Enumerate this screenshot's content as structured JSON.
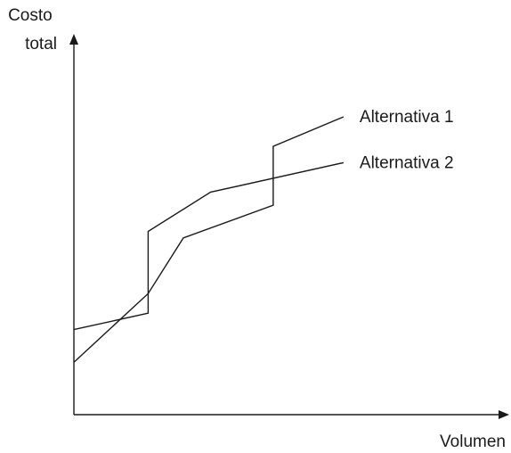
{
  "chart_data": {
    "type": "line",
    "title": "",
    "xlabel": "Volumen",
    "ylabel": [
      "Costo",
      "total"
    ],
    "axis_ticks": "none",
    "grid": false,
    "legend": "direct labels at right end of each line",
    "xlim": [
      0,
      100
    ],
    "ylim": [
      0,
      100
    ],
    "series": [
      {
        "name": "Alternativa 1",
        "points": [
          [
            0,
            16
          ],
          [
            19,
            37
          ],
          [
            28,
            54
          ],
          [
            51,
            64
          ],
          [
            51,
            82
          ],
          [
            69,
            91
          ]
        ]
      },
      {
        "name": "Alternativa 2",
        "points": [
          [
            0,
            26
          ],
          [
            19,
            31
          ],
          [
            19,
            56
          ],
          [
            35,
            68
          ],
          [
            69,
            77
          ]
        ]
      }
    ],
    "colors": {
      "axes": "#1a1a1a",
      "lines": "#1a1a1a",
      "background": "#ffffff"
    }
  }
}
